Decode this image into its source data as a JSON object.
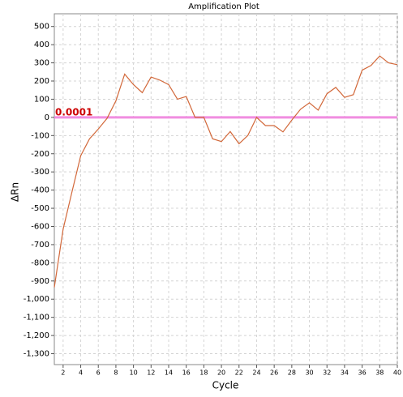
{
  "chart_data": {
    "type": "line",
    "title": "Amplification Plot",
    "x_label": "Cycle",
    "y_label": "ΔRn",
    "x": [
      1,
      2,
      3,
      4,
      5,
      6,
      7,
      8,
      9,
      10,
      11,
      12,
      13,
      14,
      15,
      16,
      17,
      18,
      19,
      20,
      21,
      22,
      23,
      24,
      25,
      26,
      27,
      28,
      29,
      30,
      31,
      32,
      33,
      34,
      35,
      36,
      37,
      38,
      39,
      40
    ],
    "series": [
      {
        "color": "#d2683a",
        "values": [
          -935,
          -615,
          -411,
          -211,
          -118,
          -64,
          -5,
          91,
          238,
          180,
          136,
          222,
          205,
          180,
          100,
          115,
          0,
          0,
          -118,
          -133,
          -78,
          -145,
          -100,
          0,
          -45,
          -45,
          -80,
          -15,
          45,
          80,
          40,
          130,
          165,
          110,
          125,
          260,
          285,
          338,
          300,
          290
        ]
      }
    ],
    "threshold": {
      "value": 0.0001,
      "color": "#f08ee0",
      "label_color": "#cc0000"
    },
    "xlim": [
      1,
      40
    ],
    "xticks": [
      2,
      4,
      6,
      8,
      10,
      12,
      14,
      16,
      18,
      20,
      22,
      24,
      26,
      28,
      30,
      32,
      34,
      36,
      38,
      40
    ],
    "ylim": [
      -1360,
      570
    ],
    "yticks": [
      {
        "value": -1300,
        "label": "-1,300"
      },
      {
        "value": -1200,
        "label": "-1,200"
      },
      {
        "value": -1100,
        "label": "-1,100"
      },
      {
        "value": -1000,
        "label": "-1,000"
      },
      -900,
      -800,
      -700,
      -600,
      -500,
      -400,
      -300,
      -200,
      -100,
      0,
      100,
      200,
      300,
      400,
      500
    ],
    "grid": true
  }
}
